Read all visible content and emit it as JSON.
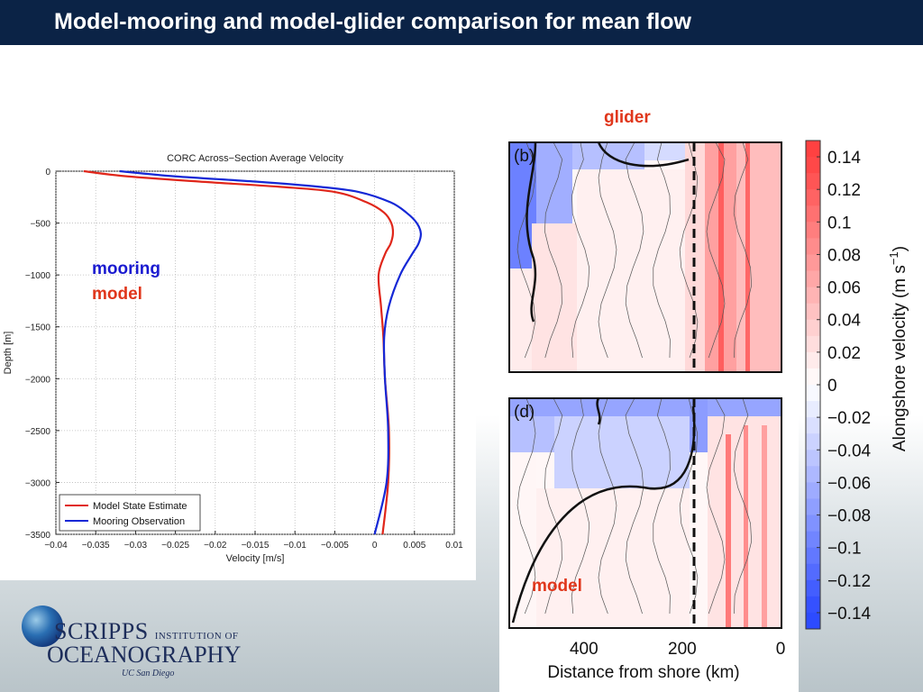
{
  "header": {
    "title": "Model-mooring and model-glider comparison for mean flow"
  },
  "labels": {
    "glider": "glider",
    "model": "model",
    "mooring_overlay": "mooring",
    "model_overlay": "model"
  },
  "logo": {
    "line1": "SCRIPPS",
    "line1_small": "INSTITUTION OF",
    "line2": "OCEANOGRAPHY",
    "line3": "UC San Diego"
  },
  "colors": {
    "model": "#e0261a",
    "mooring": "#1528d6",
    "header_bg": "#0b2346"
  },
  "chart_data": [
    {
      "type": "line",
      "title": "CORC Across−Section Average Velocity",
      "xlabel": "Velocity [m/s]",
      "ylabel": "Depth [m]",
      "xlim": [
        -0.04,
        0.01
      ],
      "ylim": [
        -3500,
        0
      ],
      "grid": true,
      "legend_position": "bottom-left",
      "x_ticks": [
        "−0.04",
        "−0.035",
        "−0.03",
        "−0.025",
        "−0.02",
        "−0.015",
        "−0.01",
        "−0.005",
        "0",
        "0.005",
        "0.01"
      ],
      "y_ticks": [
        "0",
        "−500",
        "−1000",
        "−1500",
        "−2000",
        "−2500",
        "−3000",
        "−3500"
      ],
      "series": [
        {
          "name": "Model State Estimate",
          "color": "#e0261a",
          "depth": [
            0,
            -50,
            -100,
            -150,
            -200,
            -300,
            -400,
            -500,
            -600,
            -700,
            -800,
            -1000,
            -1300,
            -1600,
            -2000,
            -2500,
            -3000,
            -3500
          ],
          "velocity": [
            -0.0365,
            -0.031,
            -0.022,
            -0.012,
            -0.005,
            -0.001,
            0.0012,
            0.0021,
            0.0023,
            0.002,
            0.0013,
            0.0005,
            0.0008,
            0.0011,
            0.0013,
            0.0018,
            0.0017,
            0.001
          ]
        },
        {
          "name": "Mooring Observation",
          "color": "#1528d6",
          "depth": [
            0,
            -50,
            -100,
            -150,
            -200,
            -300,
            -400,
            -500,
            -600,
            -700,
            -800,
            -1000,
            -1300,
            -1600,
            -2000,
            -2500,
            -3000,
            -3500
          ],
          "velocity": [
            -0.032,
            -0.025,
            -0.015,
            -0.007,
            -0.002,
            0.002,
            0.004,
            0.0053,
            0.0058,
            0.0055,
            0.0047,
            0.0032,
            0.0018,
            0.0012,
            0.0013,
            0.0017,
            0.0015,
            0.0
          ]
        }
      ]
    },
    {
      "type": "heatmap",
      "panel": "(b)",
      "source": "glider"
    },
    {
      "type": "heatmap",
      "panel": "(d)",
      "source": "model",
      "xlabel": "Distance from shore (km)",
      "x_ticks": [
        "400",
        "200",
        "0"
      ],
      "x_tick_values": [
        400,
        200,
        0
      ]
    },
    {
      "type": "colorbar",
      "label": "Alongshore velocity (m s",
      "label_exponent": "−1",
      "label_suffix": ")",
      "ticks": [
        "0.14",
        "0.12",
        "0.1",
        "0.08",
        "0.06",
        "0.04",
        "0.02",
        "0",
        "−0.02",
        "−0.04",
        "−0.06",
        "−0.08",
        "−0.1",
        "−0.12",
        "−0.14"
      ],
      "range": [
        -0.15,
        0.15
      ]
    }
  ]
}
